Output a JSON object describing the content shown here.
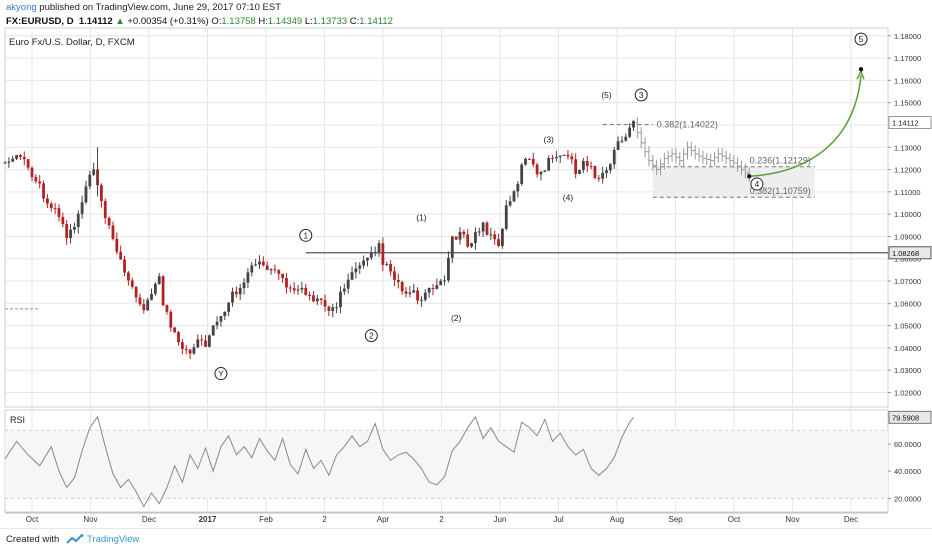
{
  "header": {
    "author": "akyong",
    "published": "published on TradingView.com, June 29, 2017 07:10 EST",
    "symbol": "FX:EURUSD, D",
    "last": "1.14112",
    "change": "+0.00354 (+0.31%)",
    "o_label": "O:",
    "o_value": "1.13758",
    "h_label": "H:",
    "h_value": "1.14349",
    "l_label": "L:",
    "l_value": "1.13733",
    "c_label": "C:",
    "c_value": "1.14112"
  },
  "footer": {
    "created_with": "Created with",
    "brand": "TradingView"
  },
  "chart_data": {
    "type": "candlestick",
    "title": "Euro Fx/U.S. Dollar, D, FXCM",
    "price_axis": {
      "ticks": [
        "1.18000",
        "1.17000",
        "1.16000",
        "1.15000",
        "1.14000",
        "1.13000",
        "1.12000",
        "1.11000",
        "1.10000",
        "1.09000",
        "1.08000",
        "1.07000",
        "1.06000",
        "1.05000",
        "1.04000",
        "1.03000",
        "1.02000"
      ],
      "range": [
        1.0135,
        1.1835
      ],
      "last_price_label": "1.14112",
      "level_label": "1.08268"
    },
    "rsi": {
      "label": "RSI",
      "ticks": [
        "60.0000",
        "40.0000",
        "20.0000"
      ],
      "range": [
        10,
        85
      ],
      "last_label": "79.5908",
      "bands": [
        70,
        20
      ]
    },
    "time_axis": [
      "Oct",
      "Nov",
      "Dec",
      "2017",
      "Feb",
      "2",
      "Apr",
      "2",
      "Jun",
      "Jul",
      "Aug",
      "Sep",
      "Oct",
      "Nov",
      "Dec"
    ],
    "horizontal_level": 1.08268,
    "price_path": [
      [
        0,
        1.123
      ],
      [
        2,
        1.125
      ],
      [
        4,
        1.127
      ],
      [
        6,
        1.121
      ],
      [
        8,
        1.116
      ],
      [
        10,
        1.109
      ],
      [
        12,
        1.103
      ],
      [
        14,
        1.099
      ],
      [
        15,
        1.095
      ],
      [
        16,
        1.09
      ],
      [
        18,
        1.094
      ],
      [
        20,
        1.105
      ],
      [
        22,
        1.117
      ],
      [
        23,
        1.12
      ],
      [
        24,
        1.111
      ],
      [
        26,
        1.098
      ],
      [
        28,
        1.088
      ],
      [
        30,
        1.08
      ],
      [
        32,
        1.07
      ],
      [
        34,
        1.061
      ],
      [
        36,
        1.058
      ],
      [
        38,
        1.066
      ],
      [
        40,
        1.071
      ],
      [
        41,
        1.06
      ],
      [
        43,
        1.05
      ],
      [
        46,
        1.041
      ],
      [
        48,
        1.039
      ],
      [
        50,
        1.044
      ],
      [
        52,
        1.042
      ],
      [
        54,
        1.049
      ],
      [
        56,
        1.053
      ],
      [
        58,
        1.062
      ],
      [
        60,
        1.066
      ],
      [
        62,
        1.071
      ],
      [
        64,
        1.076
      ],
      [
        66,
        1.078
      ],
      [
        68,
        1.075
      ],
      [
        70,
        1.073
      ],
      [
        72,
        1.071
      ],
      [
        74,
        1.066
      ],
      [
        76,
        1.068
      ],
      [
        78,
        1.064
      ],
      [
        80,
        1.06
      ],
      [
        82,
        1.061
      ],
      [
        84,
        1.056
      ],
      [
        86,
        1.06
      ],
      [
        88,
        1.068
      ],
      [
        90,
        1.073
      ],
      [
        92,
        1.076
      ],
      [
        94,
        1.079
      ],
      [
        96,
        1.083
      ],
      [
        97,
        1.086
      ],
      [
        98,
        1.079
      ],
      [
        100,
        1.073
      ],
      [
        102,
        1.068
      ],
      [
        104,
        1.064
      ],
      [
        106,
        1.064
      ],
      [
        108,
        1.061
      ],
      [
        110,
        1.065
      ],
      [
        112,
        1.068
      ],
      [
        114,
        1.072
      ],
      [
        116,
        1.088
      ],
      [
        118,
        1.091
      ],
      [
        120,
        1.087
      ],
      [
        122,
        1.091
      ],
      [
        124,
        1.095
      ],
      [
        126,
        1.09
      ],
      [
        128,
        1.087
      ],
      [
        130,
        1.102
      ],
      [
        132,
        1.109
      ],
      [
        134,
        1.121
      ],
      [
        136,
        1.126
      ],
      [
        138,
        1.119
      ],
      [
        140,
        1.121
      ],
      [
        142,
        1.126
      ],
      [
        144,
        1.128
      ],
      [
        146,
        1.126
      ],
      [
        148,
        1.12
      ],
      [
        150,
        1.123
      ],
      [
        152,
        1.12
      ],
      [
        154,
        1.116
      ],
      [
        156,
        1.119
      ],
      [
        158,
        1.129
      ],
      [
        160,
        1.133
      ],
      [
        162,
        1.139
      ],
      [
        163,
        1.141
      ]
    ],
    "projected_path": [
      [
        163,
        1.141
      ],
      [
        165,
        1.132
      ],
      [
        167,
        1.124
      ],
      [
        169,
        1.12
      ],
      [
        171,
        1.125
      ],
      [
        173,
        1.127
      ],
      [
        175,
        1.124
      ],
      [
        177,
        1.13
      ],
      [
        179,
        1.127
      ],
      [
        181,
        1.125
      ],
      [
        183,
        1.124
      ],
      [
        185,
        1.127
      ],
      [
        187,
        1.125
      ],
      [
        189,
        1.123
      ],
      [
        191,
        1.12
      ],
      [
        193,
        1.117
      ]
    ],
    "projection_arrow": {
      "from": [
        193,
        1.117
      ],
      "to": [
        222,
        1.165
      ]
    },
    "retracement_box": {
      "from_x": 168,
      "to_x": 210,
      "top": 1.12129,
      "bottom": 1.10759
    },
    "retracement_lines": [
      {
        "label": "0.382(1.14022)",
        "value": 1.14022,
        "x0": 155,
        "x1": 168
      },
      {
        "label": "0.236(1.12129)",
        "value": 1.12129,
        "x0": 168,
        "x1": 210
      },
      {
        "label": "0.382(1.10759)",
        "value": 1.10759,
        "x0": 168,
        "x1": 210
      }
    ],
    "wave_labels": [
      {
        "text": "Y",
        "x": 56,
        "y": 1.0285,
        "circled": true
      },
      {
        "text": "1",
        "x": 78,
        "y": 1.0905,
        "circled": true
      },
      {
        "text": "2",
        "x": 95,
        "y": 1.0455,
        "circled": true
      },
      {
        "text": "(1)",
        "x": 108,
        "y": 1.0985,
        "circled": false
      },
      {
        "text": "(2)",
        "x": 117,
        "y": 1.0535,
        "circled": false
      },
      {
        "text": "(3)",
        "x": 141,
        "y": 1.1335,
        "circled": false
      },
      {
        "text": "(4)",
        "x": 146,
        "y": 1.1075,
        "circled": false
      },
      {
        "text": "(5)",
        "x": 156,
        "y": 1.1535,
        "circled": false
      },
      {
        "text": "3",
        "x": 165,
        "y": 1.1535,
        "circled": true
      },
      {
        "text": "4",
        "x": 195,
        "y": 1.1135,
        "circled": true
      },
      {
        "text": "5",
        "x": 222,
        "y": 1.1785,
        "circled": true
      }
    ],
    "rsi_path": [
      [
        0,
        49
      ],
      [
        3,
        62
      ],
      [
        6,
        52
      ],
      [
        9,
        44
      ],
      [
        12,
        58
      ],
      [
        14,
        40
      ],
      [
        16,
        28
      ],
      [
        18,
        35
      ],
      [
        20,
        55
      ],
      [
        22,
        72
      ],
      [
        24,
        80
      ],
      [
        26,
        58
      ],
      [
        28,
        38
      ],
      [
        30,
        28
      ],
      [
        32,
        34
      ],
      [
        34,
        25
      ],
      [
        36,
        14
      ],
      [
        38,
        24
      ],
      [
        40,
        16
      ],
      [
        42,
        28
      ],
      [
        44,
        44
      ],
      [
        46,
        32
      ],
      [
        48,
        52
      ],
      [
        50,
        42
      ],
      [
        52,
        57
      ],
      [
        54,
        40
      ],
      [
        56,
        58
      ],
      [
        58,
        66
      ],
      [
        60,
        52
      ],
      [
        62,
        58
      ],
      [
        64,
        50
      ],
      [
        66,
        64
      ],
      [
        68,
        55
      ],
      [
        70,
        48
      ],
      [
        72,
        64
      ],
      [
        74,
        45
      ],
      [
        76,
        38
      ],
      [
        78,
        56
      ],
      [
        80,
        42
      ],
      [
        82,
        48
      ],
      [
        84,
        37
      ],
      [
        86,
        52
      ],
      [
        88,
        58
      ],
      [
        90,
        66
      ],
      [
        92,
        58
      ],
      [
        94,
        62
      ],
      [
        96,
        75
      ],
      [
        98,
        56
      ],
      [
        100,
        48
      ],
      [
        102,
        52
      ],
      [
        104,
        54
      ],
      [
        106,
        49
      ],
      [
        108,
        42
      ],
      [
        110,
        32
      ],
      [
        112,
        30
      ],
      [
        114,
        36
      ],
      [
        116,
        55
      ],
      [
        118,
        62
      ],
      [
        120,
        72
      ],
      [
        122,
        80
      ],
      [
        124,
        64
      ],
      [
        126,
        72
      ],
      [
        128,
        62
      ],
      [
        130,
        58
      ],
      [
        132,
        54
      ],
      [
        134,
        76
      ],
      [
        136,
        72
      ],
      [
        138,
        66
      ],
      [
        140,
        78
      ],
      [
        142,
        62
      ],
      [
        144,
        68
      ],
      [
        146,
        58
      ],
      [
        148,
        52
      ],
      [
        150,
        56
      ],
      [
        152,
        42
      ],
      [
        154,
        37
      ],
      [
        156,
        42
      ],
      [
        158,
        50
      ],
      [
        160,
        65
      ],
      [
        162,
        76
      ],
      [
        163,
        79.6
      ]
    ]
  },
  "colors": {
    "up_candle": "#444444",
    "down_candle": "#b22222",
    "projection": "#999999",
    "arrow": "#5a9e3a",
    "grid": "#e6e6e6",
    "axis_text": "#333333",
    "level_line": "#555555",
    "box_fill": "#eeeeee"
  }
}
